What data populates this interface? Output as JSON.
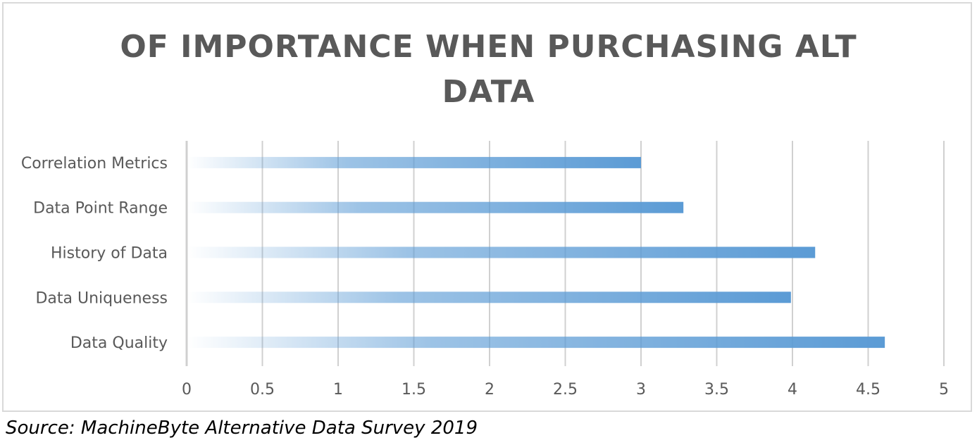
{
  "chart_data": {
    "type": "bar",
    "orientation": "horizontal",
    "title": "OF IMPORTANCE WHEN PURCHASING ALT DATA",
    "title_lines": [
      "OF IMPORTANCE WHEN PURCHASING ALT",
      "DATA"
    ],
    "categories": [
      "Data Quality",
      "Data Uniqueness",
      "History of Data",
      "Data Point Range",
      "Correlation Metrics"
    ],
    "values": [
      4.61,
      3.99,
      4.15,
      3.28,
      3.0
    ],
    "xlim": [
      0,
      5
    ],
    "xticks": [
      0,
      0.5,
      1,
      1.5,
      2,
      2.5,
      3,
      3.5,
      4,
      4.5,
      5
    ],
    "xtick_labels": [
      "0",
      "0.5",
      "1",
      "1.5",
      "2",
      "2.5",
      "3",
      "3.5",
      "4",
      "4.5",
      "5"
    ],
    "xlabel": "",
    "ylabel": "",
    "grid": "vertical",
    "legend": "none",
    "bar_color": "#5b9bd5",
    "bar_fill": "gradient-fade-left",
    "grid_color": "#d0d0d0"
  },
  "source": "Source: MachineByte Alternative Data Survey 2019"
}
